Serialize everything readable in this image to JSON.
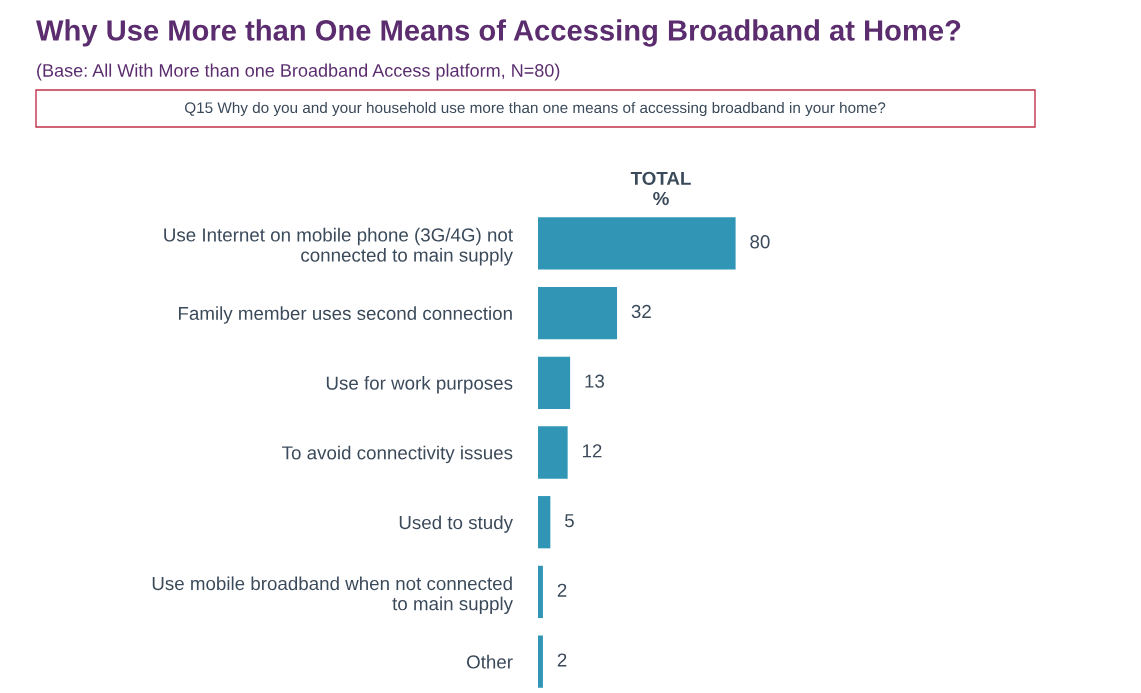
{
  "chart_data": {
    "type": "bar",
    "orientation": "horizontal",
    "title": "Why Use More than One Means of Accessing Broadband at Home?",
    "subtitle": "(Base: All With More than one Broadband Access platform, N=80)",
    "annotations": [
      "Q15 Why do you and your household use more than one means of accessing broadband in your home?"
    ],
    "xlabel": "TOTAL\n%",
    "categories": [
      "Use Internet on mobile phone (3G/4G) not\nconnected to main supply",
      "Family member uses second connection",
      "Use for work purposes",
      "To avoid connectivity issues",
      "Used to study",
      "Use mobile broadband when not connected\nto main supply",
      "Other"
    ],
    "values": [
      80,
      32,
      13,
      12,
      5,
      2,
      2
    ],
    "color": "#3196b6",
    "data_labels": true
  }
}
